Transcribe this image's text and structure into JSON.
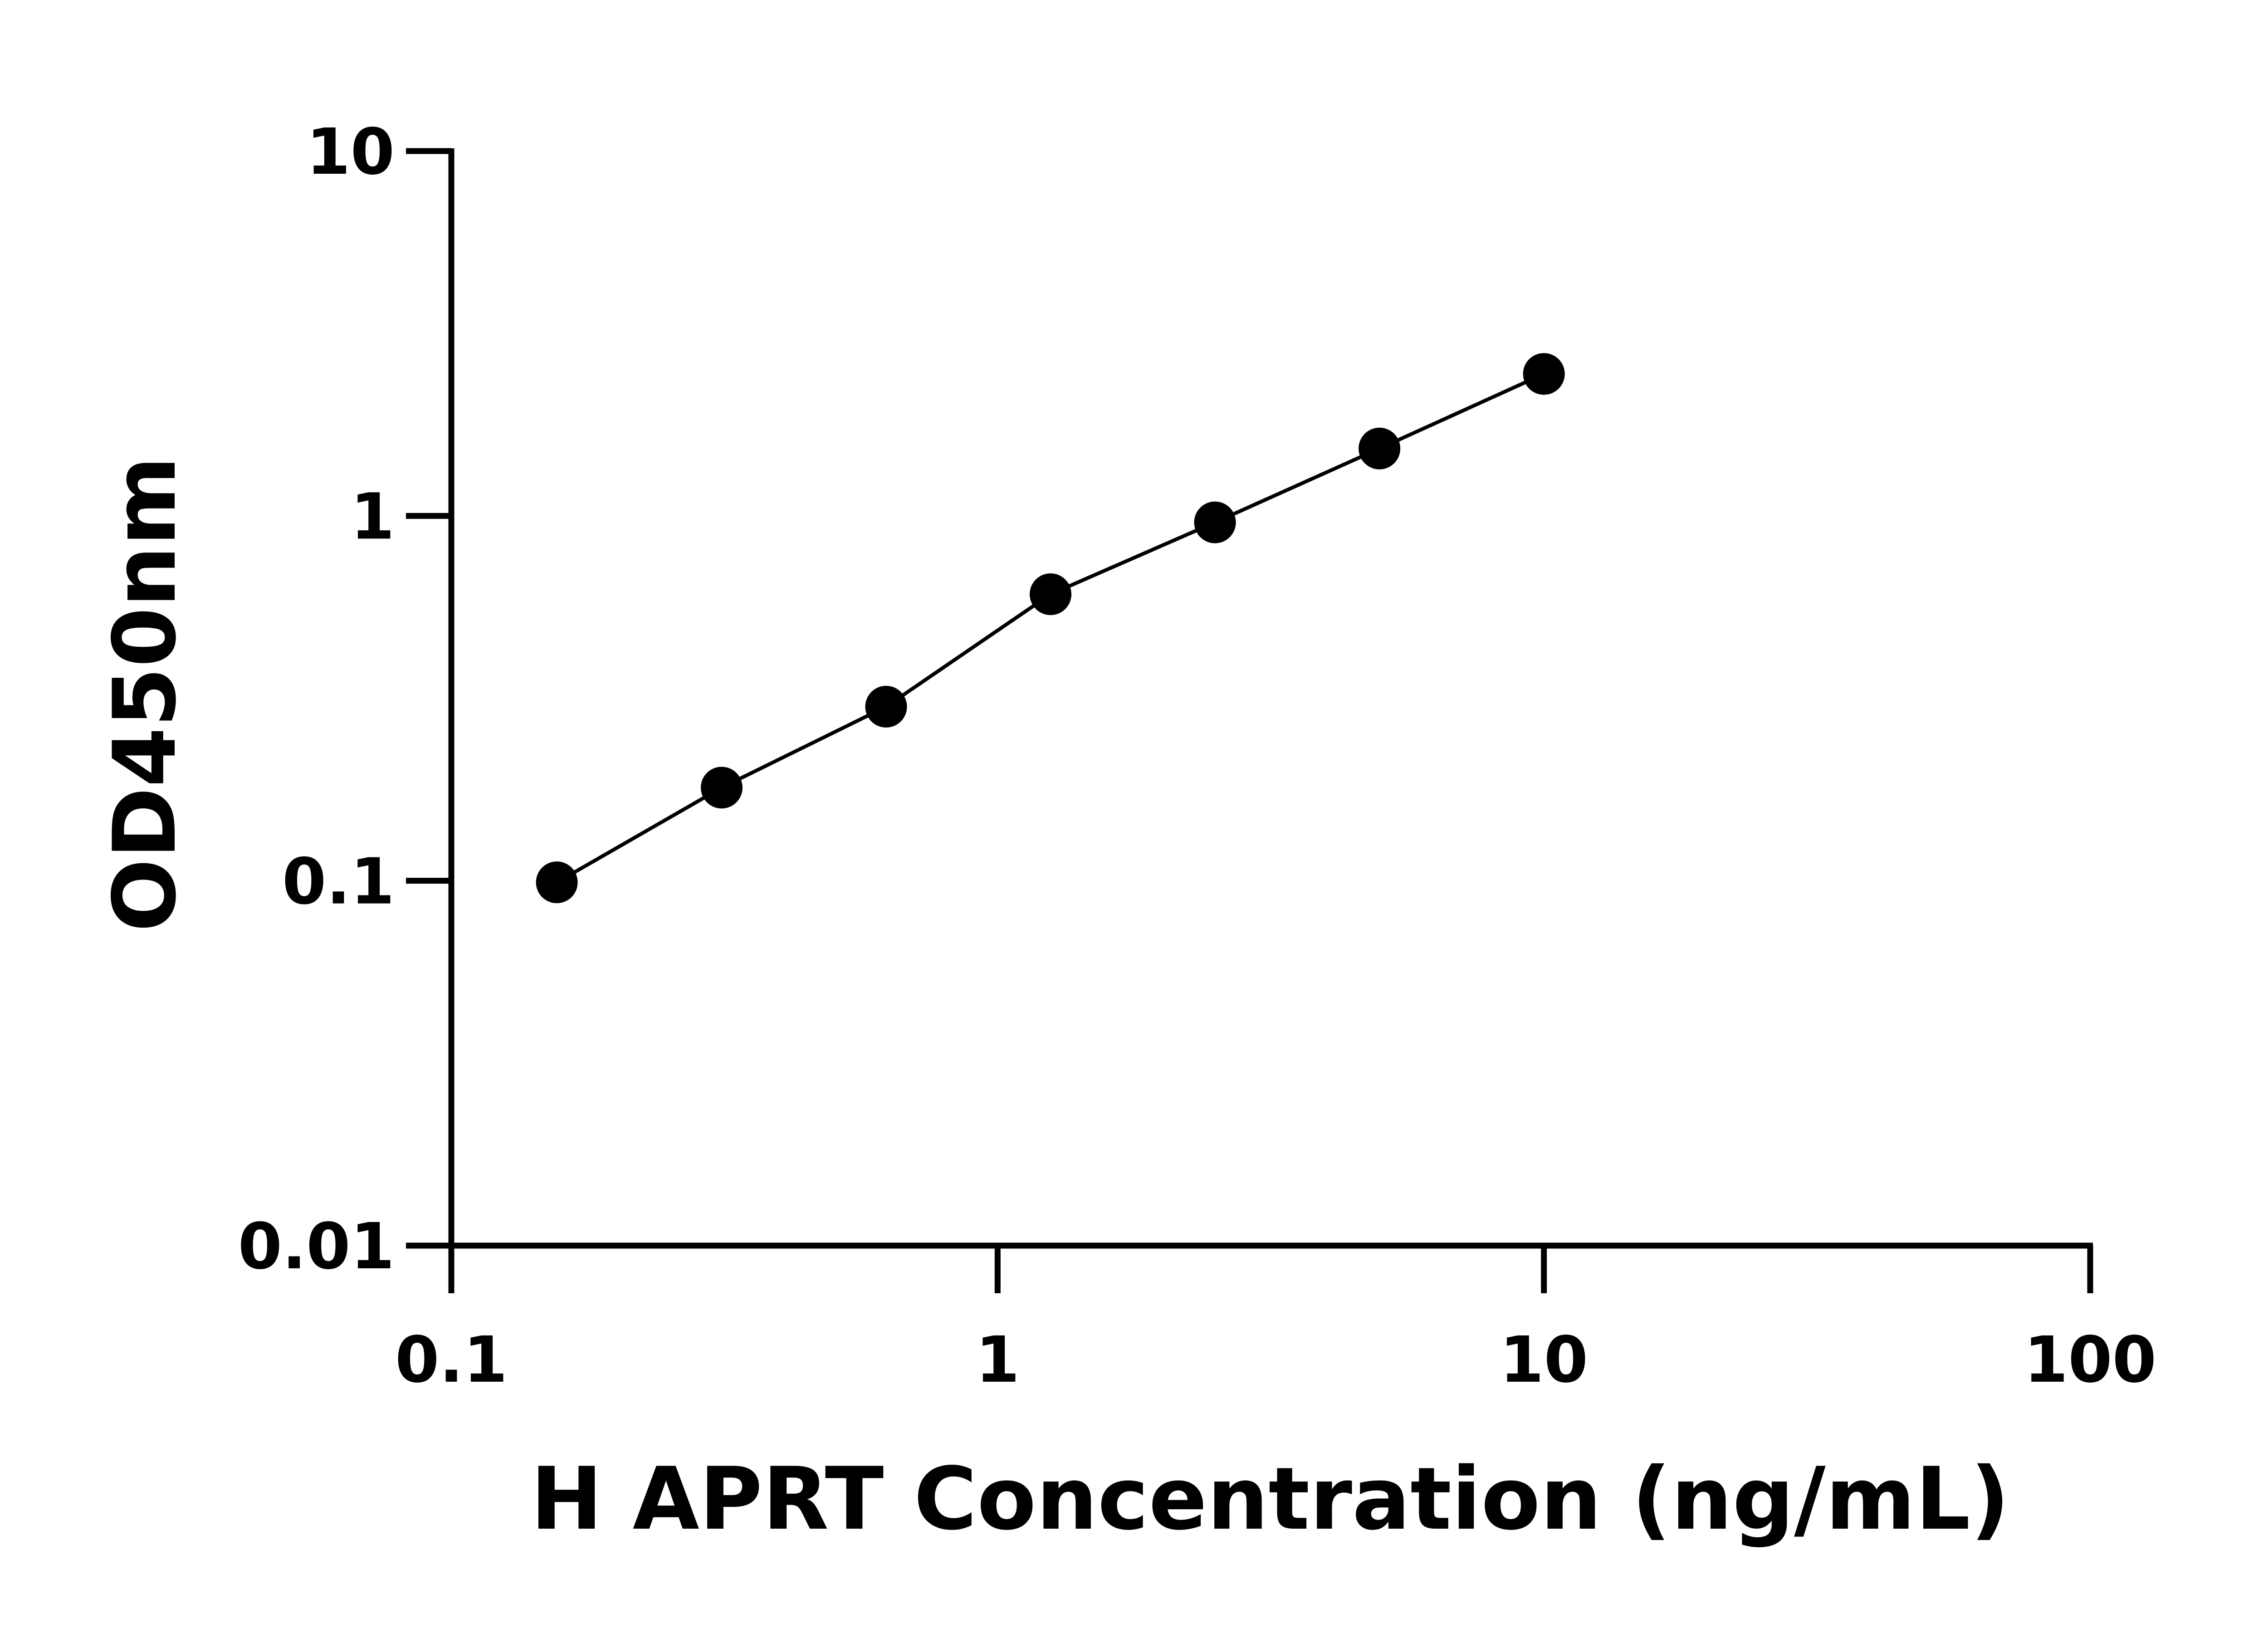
{
  "chart_data": {
    "type": "scatter",
    "title": "",
    "xlabel": "H APRT Concentration (ng/mL)",
    "ylabel": "OD450nm",
    "xscale": "log",
    "yscale": "log",
    "xlim": [
      0.1,
      100
    ],
    "ylim": [
      0.01,
      10
    ],
    "xticks": [
      "0.1",
      "1",
      "10",
      "100"
    ],
    "yticks": [
      "0.01",
      "0.1",
      "1",
      "10"
    ],
    "grid": false,
    "fit_line": true,
    "marker_color": "#000000",
    "series": [
      {
        "x": [
          0.156,
          0.3125,
          0.625,
          1.25,
          2.5,
          5,
          10
        ],
        "y": [
          0.099,
          0.18,
          0.3,
          0.61,
          0.96,
          1.53,
          2.45
        ]
      }
    ]
  }
}
